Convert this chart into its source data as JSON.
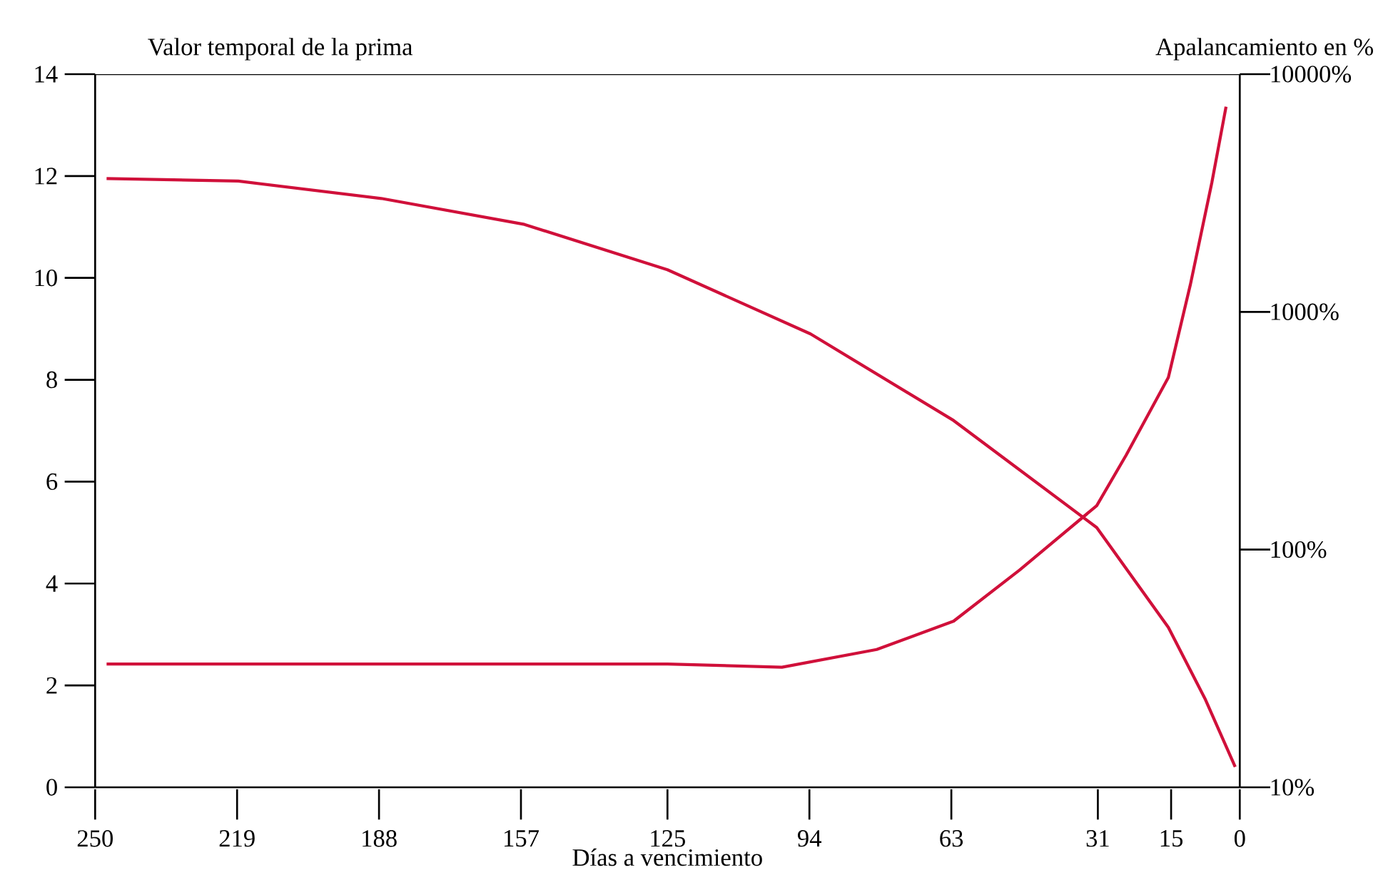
{
  "chart_data": {
    "type": "line",
    "ylabel": "Valor temporal de la prima",
    "y2label": "Apalancamiento en %",
    "xlabel": "Días a vencimiento",
    "xlim": [
      250,
      0
    ],
    "ylim": [
      0,
      14
    ],
    "y2lim": [
      10,
      10000
    ],
    "log": "y2",
    "xticks": [
      250,
      219,
      188,
      157,
      125,
      94,
      63,
      31,
      15,
      0
    ],
    "yticks": [
      0,
      2,
      4,
      6,
      8,
      10,
      12,
      14
    ],
    "y2ticks": [
      {
        "value": 10,
        "label": "10%"
      },
      {
        "value": 100,
        "label": "100%"
      },
      {
        "value": 1000,
        "label": "1000%"
      },
      {
        "value": 10000,
        "label": "10000%"
      }
    ],
    "series": [
      {
        "color": "#d0103a",
        "x": [
          247.5,
          218.75,
          187.5,
          156.25,
          125,
          93.75,
          62.5,
          31.25,
          15.6,
          7.6,
          1
        ],
        "values": [
          11.95,
          11.9,
          11.56,
          11.05,
          10.16,
          8.9,
          7.2,
          5.1,
          3.14,
          1.74,
          0.4
        ]
      },
      {
        "color": "#d0103a",
        "axis": "y2",
        "x": [
          247.5,
          156,
          125,
          100,
          79.3,
          62.5,
          48.1,
          31.25,
          24.8,
          15.6,
          10.8,
          6.1,
          3
        ],
        "values": [
          33,
          33,
          33,
          32,
          38,
          50,
          82,
          153,
          250,
          530,
          1300,
          3500,
          7300
        ]
      }
    ]
  }
}
